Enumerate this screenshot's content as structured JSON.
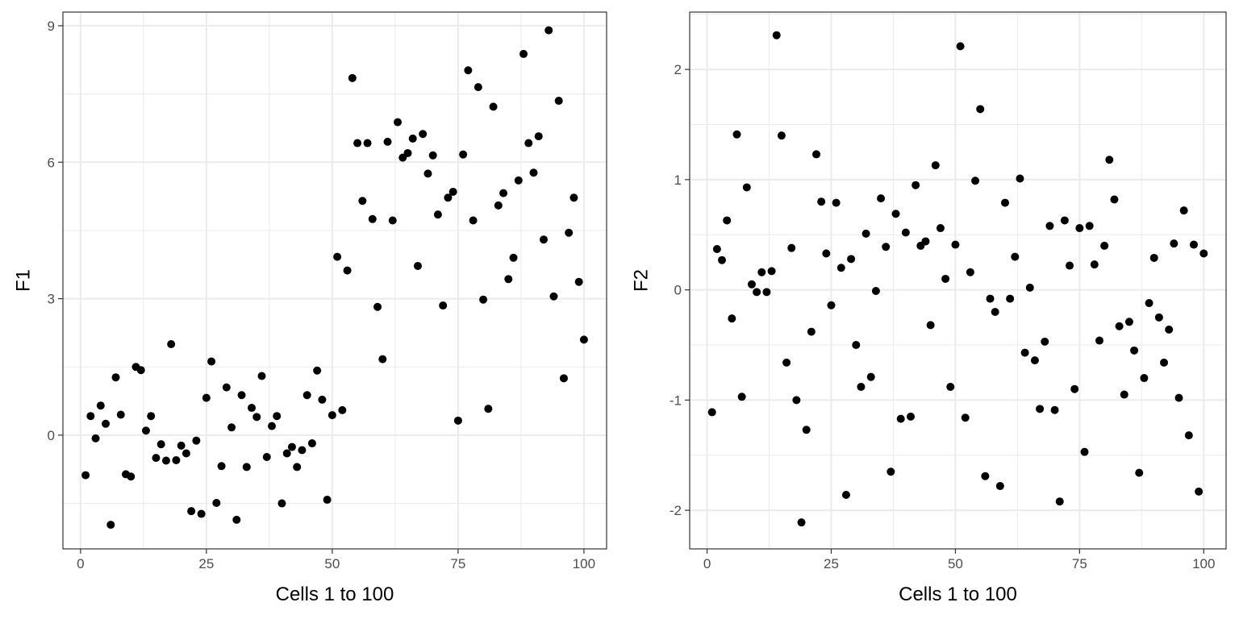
{
  "chart_data": [
    {
      "type": "scatter",
      "xlabel": "Cells 1 to 100",
      "ylabel": "F1",
      "xlim": [
        -3.5,
        104.5
      ],
      "ylim": [
        -2.5,
        9.3
      ],
      "x_ticks": [
        0,
        25,
        50,
        75,
        100
      ],
      "x_tick_labels": [
        "0",
        "25",
        "50",
        "75",
        "100"
      ],
      "y_ticks": [
        0,
        3,
        6,
        9
      ],
      "y_tick_labels": [
        "0",
        "3",
        "6",
        "9"
      ],
      "grid": true,
      "point_color": "#000000",
      "x": [
        1,
        2,
        3,
        4,
        5,
        6,
        7,
        8,
        9,
        10,
        11,
        12,
        13,
        14,
        15,
        16,
        17,
        18,
        19,
        20,
        21,
        22,
        23,
        24,
        25,
        26,
        27,
        28,
        29,
        30,
        31,
        32,
        33,
        34,
        35,
        36,
        37,
        38,
        39,
        40,
        41,
        42,
        43,
        44,
        45,
        46,
        47,
        48,
        49,
        50,
        51,
        52,
        53,
        54,
        55,
        56,
        57,
        58,
        59,
        60,
        61,
        62,
        63,
        64,
        65,
        66,
        67,
        68,
        69,
        70,
        71,
        72,
        73,
        74,
        75,
        76,
        77,
        78,
        79,
        80,
        81,
        82,
        83,
        84,
        85,
        86,
        87,
        88,
        89,
        90,
        91,
        92,
        93,
        94,
        95,
        96,
        97,
        98,
        99,
        100
      ],
      "y": [
        -0.88,
        0.42,
        -0.07,
        0.65,
        0.25,
        -1.97,
        1.27,
        0.45,
        -0.86,
        -0.91,
        1.5,
        1.43,
        0.1,
        0.42,
        -0.5,
        -0.2,
        -0.56,
        2.0,
        -0.55,
        -0.23,
        -0.4,
        -1.67,
        -0.12,
        -1.73,
        0.82,
        1.62,
        -1.49,
        -0.68,
        1.05,
        0.17,
        -1.86,
        0.88,
        -0.7,
        0.6,
        0.4,
        1.3,
        -0.48,
        0.2,
        0.42,
        -1.5,
        -0.4,
        -0.26,
        -0.7,
        -0.33,
        0.88,
        -0.18,
        1.42,
        0.78,
        -1.42,
        0.44,
        3.92,
        0.55,
        3.62,
        7.85,
        6.42,
        5.15,
        6.42,
        4.75,
        2.82,
        1.67,
        6.45,
        4.72,
        6.88,
        6.1,
        6.2,
        6.52,
        3.72,
        6.62,
        5.75,
        6.15,
        4.85,
        2.85,
        5.22,
        5.35,
        0.32,
        6.17,
        8.02,
        4.72,
        7.65,
        2.98,
        0.58,
        7.22,
        5.05,
        5.32,
        3.43,
        3.9,
        5.6,
        8.38,
        6.42,
        5.77,
        6.57,
        4.3,
        8.9,
        3.05,
        7.35,
        1.25,
        4.45,
        5.22,
        3.37,
        2.1
      ]
    },
    {
      "type": "scatter",
      "xlabel": "Cells 1 to 100",
      "ylabel": "F2",
      "xlim": [
        -3.5,
        104.5
      ],
      "ylim": [
        -2.35,
        2.52
      ],
      "x_ticks": [
        0,
        25,
        50,
        75,
        100
      ],
      "x_tick_labels": [
        "0",
        "25",
        "50",
        "75",
        "100"
      ],
      "y_ticks": [
        -2,
        -1,
        0,
        1,
        2
      ],
      "y_tick_labels": [
        "-2",
        "-1",
        "0",
        "1",
        "2"
      ],
      "grid": true,
      "point_color": "#000000",
      "x": [
        1,
        2,
        3,
        4,
        5,
        6,
        7,
        8,
        9,
        10,
        11,
        12,
        13,
        14,
        15,
        16,
        17,
        18,
        19,
        20,
        21,
        22,
        23,
        24,
        25,
        26,
        27,
        28,
        29,
        30,
        31,
        32,
        33,
        34,
        35,
        36,
        37,
        38,
        39,
        40,
        41,
        42,
        43,
        44,
        45,
        46,
        47,
        48,
        49,
        50,
        51,
        52,
        53,
        54,
        55,
        56,
        57,
        58,
        59,
        60,
        61,
        62,
        63,
        64,
        65,
        66,
        67,
        68,
        69,
        70,
        71,
        72,
        73,
        74,
        75,
        76,
        77,
        78,
        79,
        80,
        81,
        82,
        83,
        84,
        85,
        86,
        87,
        88,
        89,
        90,
        91,
        92,
        93,
        94,
        95,
        96,
        97,
        98,
        99,
        100
      ],
      "y": [
        -1.11,
        0.37,
        0.27,
        0.63,
        -0.26,
        1.41,
        -0.97,
        0.93,
        0.05,
        -0.02,
        0.16,
        -0.02,
        0.17,
        2.31,
        1.4,
        -0.66,
        0.38,
        -1.0,
        -2.11,
        -1.27,
        -0.38,
        1.23,
        0.8,
        0.33,
        -0.14,
        0.79,
        0.2,
        -1.86,
        0.28,
        -0.5,
        -0.88,
        0.51,
        -0.79,
        -0.01,
        0.83,
        0.39,
        -1.65,
        0.69,
        -1.17,
        0.52,
        -1.15,
        0.95,
        0.4,
        0.44,
        -0.32,
        1.13,
        0.56,
        0.1,
        -0.88,
        0.41,
        2.21,
        -1.16,
        0.16,
        0.99,
        1.64,
        -1.69,
        -0.08,
        -0.2,
        -1.78,
        0.79,
        -0.08,
        0.3,
        1.01,
        -0.57,
        0.02,
        -0.64,
        -1.08,
        -0.47,
        0.58,
        -1.09,
        -1.92,
        0.63,
        0.22,
        -0.9,
        0.56,
        -1.47,
        0.58,
        0.23,
        -0.46,
        0.4,
        1.18,
        0.82,
        -0.33,
        -0.95,
        -0.29,
        -0.55,
        -1.66,
        -0.8,
        -0.12,
        0.29,
        -0.25,
        -0.66,
        -0.36,
        0.42,
        -0.98,
        0.72,
        -1.32,
        0.41,
        -1.83,
        0.33
      ]
    }
  ]
}
